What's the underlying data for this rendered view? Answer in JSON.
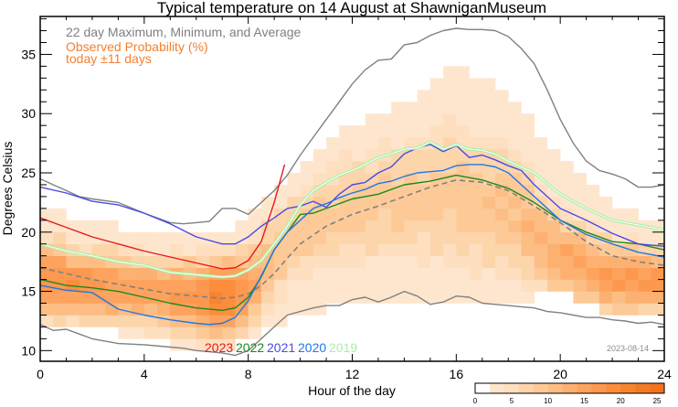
{
  "chart_data": {
    "type": "heatmap",
    "title": "Typical temperature on 14 August at ShawniganMuseum",
    "xlabel": "Hour of the day",
    "ylabel": "Degrees Celsius",
    "xlim": [
      0,
      24
    ],
    "ylim": [
      9.1,
      38.2
    ],
    "xticks": [
      0,
      4,
      8,
      12,
      16,
      20,
      24
    ],
    "yticks": [
      10,
      15,
      20,
      25,
      30,
      35
    ],
    "legend": {
      "line1": "22 day Maximum, Minimum, and Average",
      "line2": "Observed Probability (%)",
      "line3": "today ±11 days"
    },
    "date_stamp": "2023-08-14",
    "colorbar": {
      "min": 0,
      "max": 26,
      "ticks": [
        0,
        5,
        10,
        15,
        20,
        25
      ],
      "colors": [
        "#ffffff",
        "#fee6ce",
        "#fedfc0",
        "#fdd5ab",
        "#fdca97",
        "#fdbe85",
        "#fdb170",
        "#fda35e",
        "#fd984f",
        "#fc8d3c",
        "#f7852f",
        "#f47b26",
        "#f37221"
      ]
    },
    "heatmap_profile": {
      "description": "Per-hour probability band: lower/upper temperature extents of non-zero cells and the modal (peak) temperature with peak probability %",
      "hours": [
        0,
        2,
        4,
        6,
        7,
        8,
        9,
        10,
        12,
        14,
        16,
        18,
        20,
        22,
        24
      ],
      "lower": [
        12,
        12,
        11,
        10,
        10,
        11,
        12,
        13,
        14,
        14,
        14,
        14,
        15,
        13,
        13
      ],
      "upper": [
        22,
        21,
        20,
        20,
        20,
        21,
        23,
        26,
        29,
        31,
        34,
        32,
        26,
        22,
        21
      ],
      "mode": [
        16,
        15.5,
        15,
        14.5,
        14.5,
        15,
        18,
        20,
        22,
        23,
        23,
        22,
        18,
        16,
        16
      ],
      "peak_pct": [
        18,
        17,
        15,
        17,
        22,
        16,
        10,
        9,
        9,
        9,
        9,
        10,
        14,
        16,
        17
      ]
    },
    "series": [
      {
        "name": "Maximum",
        "color": "#808080",
        "style": "solid",
        "x": [
          0,
          0.5,
          1,
          1.5,
          2,
          3,
          4,
          5,
          5.5,
          6,
          6.5,
          7,
          7.5,
          8,
          8.5,
          9,
          9.5,
          10,
          10.5,
          11,
          11.5,
          12,
          12.5,
          13,
          13.5,
          14,
          14.5,
          15,
          15.5,
          16,
          16.5,
          17,
          17.5,
          18,
          18.5,
          19,
          19.5,
          20,
          20.5,
          21,
          21.5,
          22,
          22.5,
          23,
          23.5,
          24
        ],
        "y": [
          24.5,
          24,
          23.5,
          23,
          22.8,
          22.5,
          21.6,
          20.8,
          20.7,
          20.8,
          20.9,
          22,
          22,
          21.5,
          22.5,
          23.5,
          24.8,
          26.5,
          28,
          29.5,
          31,
          32.5,
          33.7,
          34.5,
          34.6,
          35.8,
          36,
          36.6,
          37,
          37.2,
          37.1,
          37.1,
          37.0,
          36.5,
          35.5,
          34.2,
          32,
          29.5,
          27.5,
          26,
          25.2,
          24.9,
          24.5,
          23.8,
          23.8,
          24
        ]
      },
      {
        "name": "Minimum",
        "color": "#808080",
        "style": "solid",
        "x": [
          0,
          0.5,
          1,
          1.5,
          2,
          3,
          4,
          5,
          5.5,
          6,
          6.5,
          7,
          7.5,
          8,
          8.5,
          9,
          9.5,
          10,
          10.5,
          11,
          11.5,
          12,
          12.5,
          13,
          13.5,
          14,
          14.5,
          15,
          15.5,
          16,
          16.5,
          17,
          17.5,
          18,
          18.5,
          19,
          19.5,
          20,
          20.5,
          21,
          21.5,
          22,
          22.5,
          23,
          23.5,
          24
        ],
        "y": [
          12.2,
          11.7,
          11.8,
          11.4,
          11,
          10.6,
          10.5,
          10.3,
          10.2,
          10,
          9.9,
          9.8,
          9.6,
          10,
          11,
          12,
          13,
          13.3,
          13.6,
          13.8,
          13.8,
          14.3,
          14.5,
          14.1,
          14.5,
          15,
          14.6,
          13.9,
          14.1,
          14.6,
          14.5,
          14,
          13.9,
          13.8,
          13.7,
          13.6,
          13.3,
          13.2,
          13,
          12.8,
          12.8,
          12.6,
          12.5,
          12.3,
          12.4,
          12.2
        ]
      },
      {
        "name": "Average",
        "color": "#808080",
        "style": "dashed",
        "x": [
          0,
          1,
          2,
          3,
          4,
          5,
          6,
          7,
          7.5,
          8,
          8.5,
          9,
          9.5,
          10,
          11,
          12,
          13,
          14,
          15,
          16,
          17,
          18,
          19,
          20,
          21,
          22,
          23,
          24
        ],
        "y": [
          17,
          16.5,
          16,
          15.6,
          15.2,
          14.8,
          14.6,
          14.4,
          14.5,
          14.8,
          15.5,
          16.5,
          17.8,
          19,
          20.5,
          21.5,
          22.2,
          23,
          23.8,
          24.4,
          24.2,
          23.5,
          22.2,
          20.8,
          19.2,
          18,
          17.5,
          17.2
        ]
      },
      {
        "name": "2023",
        "color": "#e8191c",
        "style": "solid",
        "x": [
          0,
          1,
          2,
          3,
          4,
          5,
          6,
          7,
          7.5,
          8,
          8.5,
          9,
          9.4
        ],
        "y": [
          21.2,
          20.4,
          19.6,
          19.0,
          18.4,
          17.9,
          17.4,
          16.9,
          17.0,
          17.6,
          19.2,
          22.5,
          25.7
        ]
      },
      {
        "name": "2022",
        "color": "#1a8a1a",
        "style": "solid",
        "x": [
          0,
          1,
          2,
          3,
          4,
          5,
          6,
          7,
          7.5,
          8,
          8.5,
          9,
          9.5,
          10,
          10.5,
          11,
          12,
          13,
          14,
          15,
          16,
          17,
          18,
          19,
          20,
          21,
          22,
          23,
          24
        ],
        "y": [
          16,
          15.5,
          15.3,
          15,
          14.5,
          14,
          13.6,
          13.4,
          13.6,
          14.5,
          16.2,
          18.5,
          20,
          21.5,
          21.6,
          22,
          22.8,
          23.2,
          24,
          24.3,
          24.8,
          24.4,
          23.7,
          22.5,
          21,
          20,
          19.2,
          19,
          18.5
        ]
      },
      {
        "name": "2021",
        "color": "#4a4ae6",
        "style": "solid",
        "x": [
          0,
          1,
          2,
          3,
          4,
          5,
          6,
          7,
          7.5,
          8,
          8.5,
          9,
          9.5,
          10,
          10.5,
          11,
          11.5,
          12,
          12.5,
          13,
          13.5,
          14,
          14.5,
          15,
          15.5,
          16,
          16.5,
          17,
          17.5,
          18,
          18.5,
          19,
          19.5,
          20,
          21,
          22,
          23,
          24
        ],
        "y": [
          23.8,
          23.3,
          22.6,
          22.3,
          21.6,
          20.7,
          19.6,
          19.0,
          19.0,
          19.6,
          20.5,
          21.2,
          22,
          22.2,
          22.6,
          22.1,
          23.2,
          24.0,
          24.2,
          25.0,
          25.5,
          26.6,
          27.1,
          27.4,
          26.8,
          27.3,
          26.3,
          26.5,
          26.1,
          25.6,
          25.2,
          24.0,
          23,
          22.0,
          21.0,
          19.9,
          19.0,
          18.8
        ]
      },
      {
        "name": "2020",
        "color": "#1f77e6",
        "style": "solid",
        "x": [
          0,
          1,
          1.5,
          2,
          3,
          4,
          5,
          6,
          6.5,
          7,
          7.5,
          8,
          8.5,
          9,
          9.5,
          10,
          10.5,
          11,
          11.5,
          12,
          12.5,
          13,
          13.5,
          14,
          14.5,
          15,
          15.5,
          16,
          16.5,
          17,
          17.5,
          18,
          19,
          20,
          21,
          22,
          23,
          24
        ],
        "y": [
          15.5,
          15.1,
          15,
          14.9,
          13.5,
          13.0,
          12.6,
          12.3,
          12.2,
          12.3,
          12.8,
          14.2,
          16.3,
          18.5,
          20.0,
          21.0,
          22.0,
          22.4,
          22.9,
          23.3,
          23.6,
          24.1,
          24.3,
          24.7,
          25.0,
          25.1,
          25.2,
          25.6,
          25.7,
          25.7,
          25.5,
          25.0,
          23.0,
          21.0,
          19.8,
          19.0,
          18.3,
          17.9
        ]
      },
      {
        "name": "2019",
        "color": "#a8f0a8",
        "style": "solid",
        "x": [
          0,
          1,
          2,
          3,
          4,
          5,
          6,
          7,
          7.5,
          8,
          8.5,
          9,
          9.5,
          10,
          10.5,
          11,
          11.5,
          12,
          12.5,
          13,
          13.5,
          14,
          14.5,
          15,
          15.5,
          16,
          16.5,
          17,
          17.5,
          18,
          19,
          20,
          21,
          22,
          23,
          24
        ],
        "y": [
          19.0,
          18.4,
          18.0,
          17.5,
          17.2,
          16.6,
          16.4,
          16.2,
          16.3,
          16.8,
          17.6,
          19.0,
          20.5,
          22.3,
          23.5,
          24.2,
          24.8,
          25.2,
          25.7,
          26.3,
          26.6,
          27.0,
          27.1,
          27.6,
          27.0,
          27.4,
          27.0,
          26.9,
          26.6,
          26.0,
          25.0,
          23.2,
          22.0,
          21.0,
          20.6,
          20.2
        ]
      }
    ],
    "year_labels": [
      {
        "text": "2023",
        "color": "#e8191c"
      },
      {
        "text": "2022",
        "color": "#1a8a1a"
      },
      {
        "text": "2021",
        "color": "#4a4ae6"
      },
      {
        "text": "2020",
        "color": "#1f77e6"
      },
      {
        "text": "2019",
        "color": "#a8f0a8"
      }
    ]
  }
}
